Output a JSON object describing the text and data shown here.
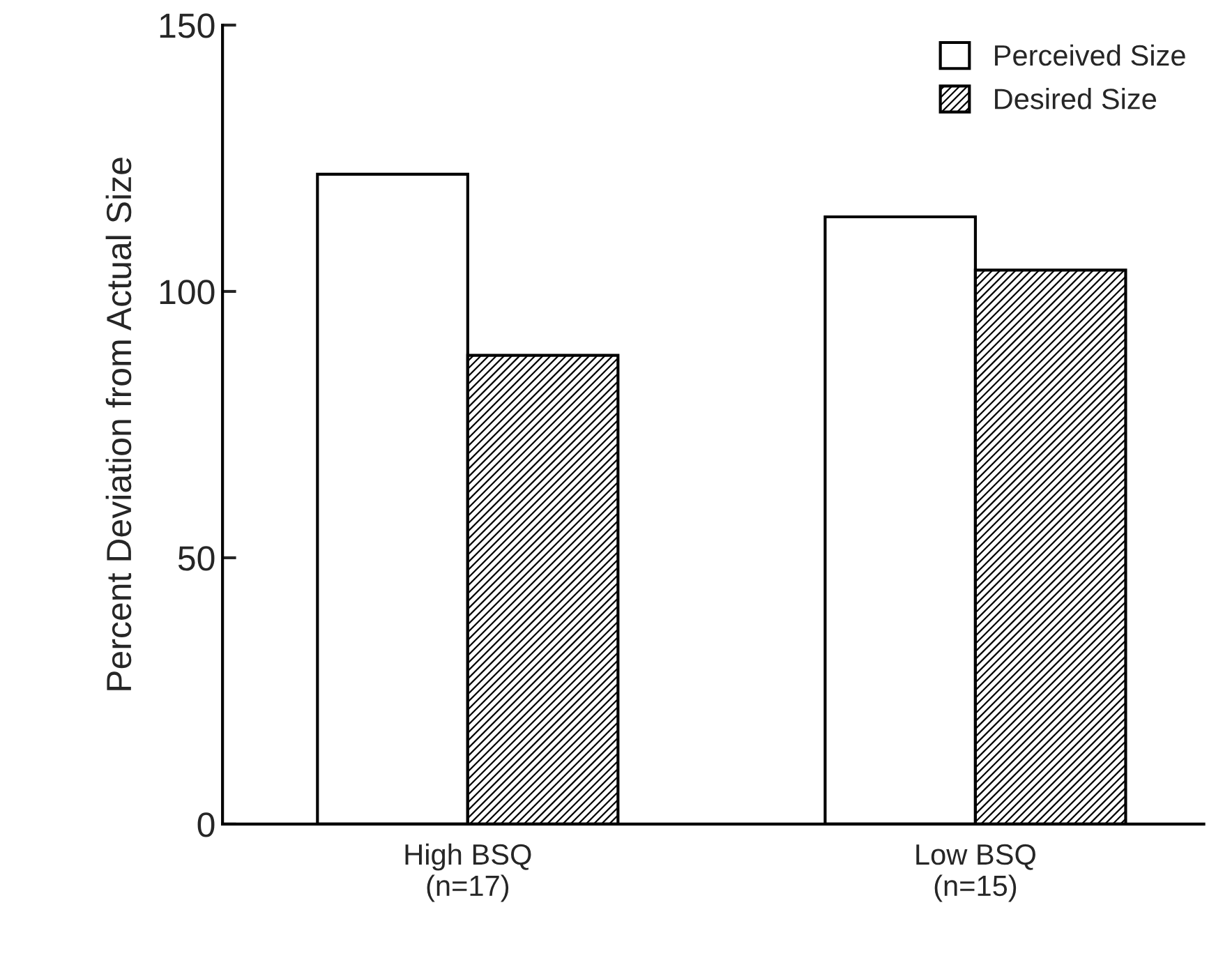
{
  "chart_data": {
    "type": "bar",
    "ylabel": "Percent Deviation from Actual Size",
    "categories": [
      "High BSQ\n(n=17)",
      "Low BSQ\n(n=15)"
    ],
    "series": [
      {
        "name": "Perceived Size",
        "color": "#ffffff",
        "values": [
          122,
          114
        ]
      },
      {
        "name": "Desired Size",
        "color": "#000000",
        "values": [
          88,
          104
        ]
      }
    ],
    "ylim": [
      0,
      150
    ],
    "yticks": [
      0,
      50,
      100,
      150
    ],
    "grid": false,
    "legend": "top right"
  }
}
